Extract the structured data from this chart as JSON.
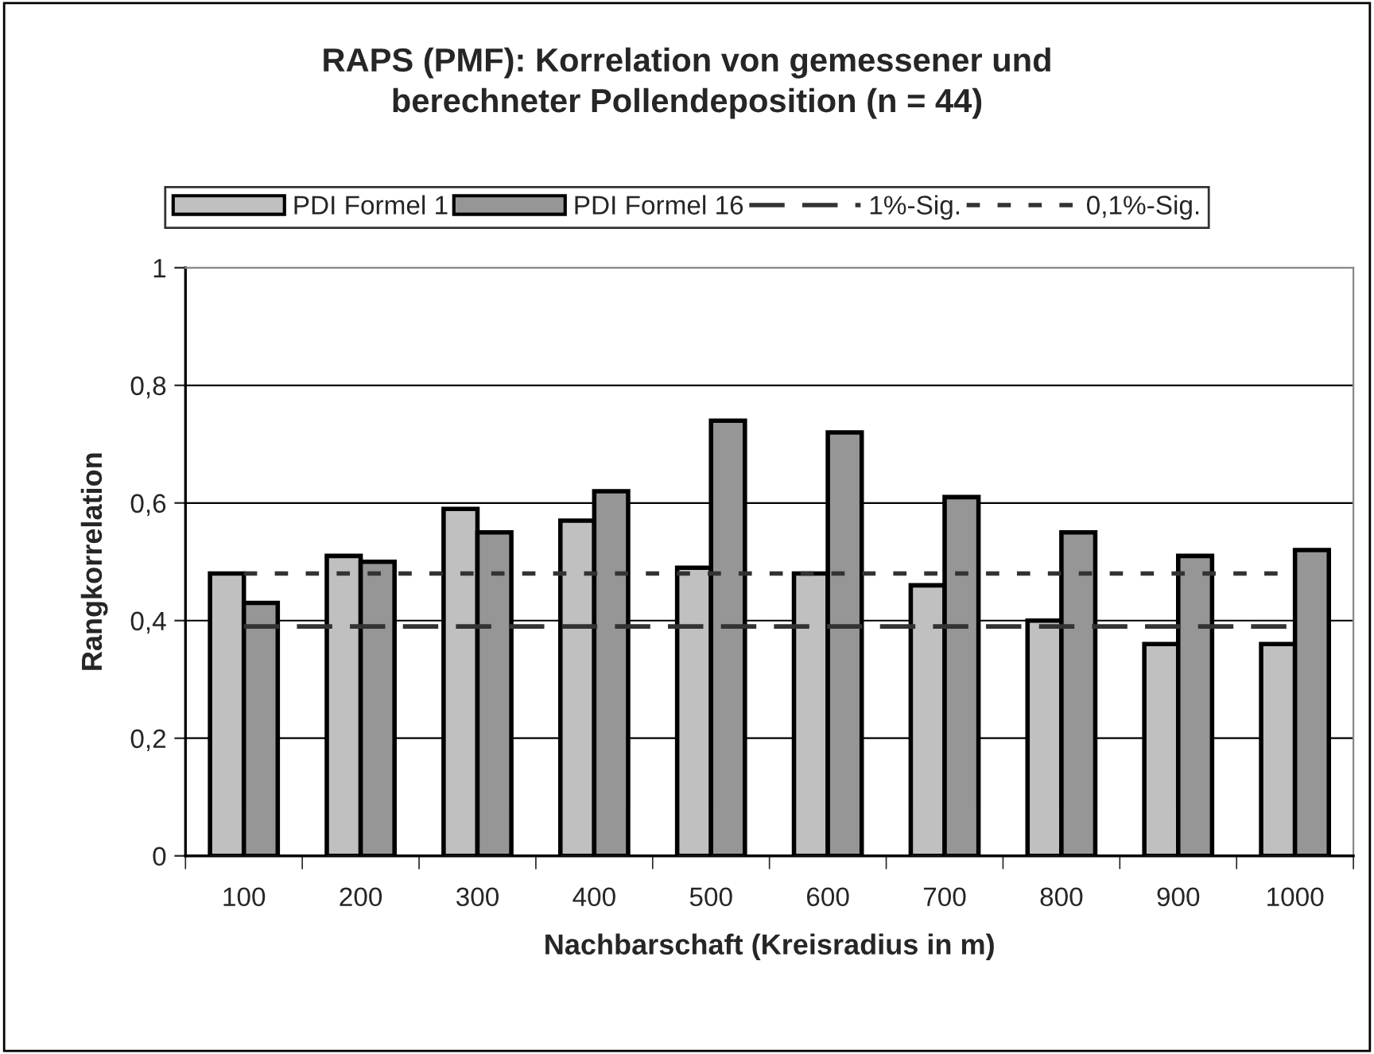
{
  "chart_data": {
    "type": "bar",
    "title": "RAPS (PMF): Korrelation von gemessener und\nberechneter Pollendeposition (n = 44)",
    "xlabel": "Nachbarschaft (Kreisradius in m)",
    "ylabel": "Rangkorrelation",
    "categories": [
      "100",
      "200",
      "300",
      "400",
      "500",
      "600",
      "700",
      "800",
      "900",
      "1000"
    ],
    "series": [
      {
        "name": "PDI Formel 1",
        "color": "#c0c0c0",
        "values": [
          0.48,
          0.51,
          0.59,
          0.57,
          0.49,
          0.48,
          0.46,
          0.4,
          0.36,
          0.36
        ]
      },
      {
        "name": "PDI Formel 16",
        "color": "#969696",
        "values": [
          0.43,
          0.5,
          0.55,
          0.62,
          0.74,
          0.72,
          0.61,
          0.55,
          0.51,
          0.52
        ]
      },
      {
        "name": "1%-Sig.",
        "type": "line",
        "line_style": "dashed",
        "color": "#333333",
        "values": [
          0.39,
          0.39,
          0.39,
          0.39,
          0.39,
          0.39,
          0.39,
          0.39,
          0.39,
          0.39
        ]
      },
      {
        "name": "0,1%-Sig.",
        "type": "line",
        "line_style": "dotted",
        "color": "#333333",
        "values": [
          0.48,
          0.48,
          0.48,
          0.48,
          0.48,
          0.48,
          0.48,
          0.48,
          0.48,
          0.48
        ]
      }
    ],
    "ylim": [
      0,
      1
    ],
    "yticks": [
      {
        "value": 0,
        "label": "0"
      },
      {
        "value": 0.2,
        "label": "0,2"
      },
      {
        "value": 0.4,
        "label": "0,4"
      },
      {
        "value": 0.6,
        "label": "0,6"
      },
      {
        "value": 0.8,
        "label": "0,8"
      },
      {
        "value": 1,
        "label": "1"
      }
    ],
    "grid": "y",
    "legend": "top"
  }
}
